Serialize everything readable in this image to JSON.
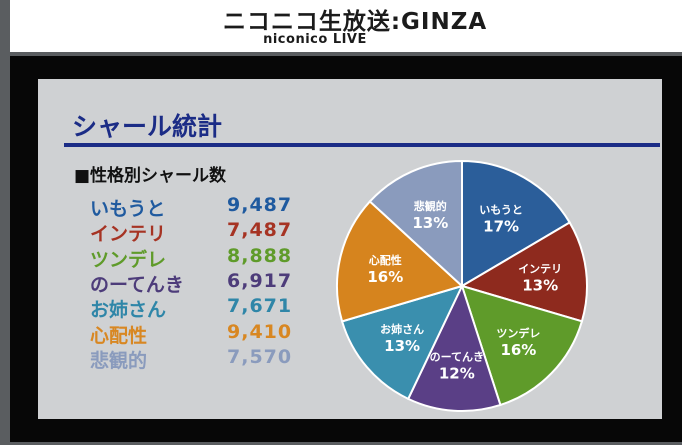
{
  "broadcast_header": {
    "brand_main": "ニコニコ生放送:GINZA",
    "brand_sub": "niconico LIVE"
  },
  "slide": {
    "title": "シャール統計",
    "section_label": "■性格別シャール数"
  },
  "chart_data": {
    "type": "pie",
    "title": "シャール統計",
    "subtitle": "■性格別シャール数",
    "categories": [
      "いもうと",
      "インテリ",
      "ツンデレ",
      "のーてんき",
      "お姉さん",
      "心配性",
      "悲観的"
    ],
    "values": [
      9487,
      7487,
      8888,
      6917,
      7671,
      9410,
      7570
    ],
    "value_labels": [
      "9,487",
      "7,487",
      "8,888",
      "6,917",
      "7,671",
      "9,410",
      "7,570"
    ],
    "percent_labels": [
      "17%",
      "13%",
      "16%",
      "12%",
      "13%",
      "16%",
      "13%"
    ],
    "colors": [
      "#2b5e9a",
      "#8e2a1e",
      "#5f9b2a",
      "#5a3f86",
      "#3a8fae",
      "#d6841e",
      "#8a9bbd"
    ],
    "text_colors": [
      "#1f5a9f",
      "#a63323",
      "#5f9b2a",
      "#4d3c7a",
      "#2f86a8",
      "#d88722",
      "#8a9bbd"
    ]
  }
}
